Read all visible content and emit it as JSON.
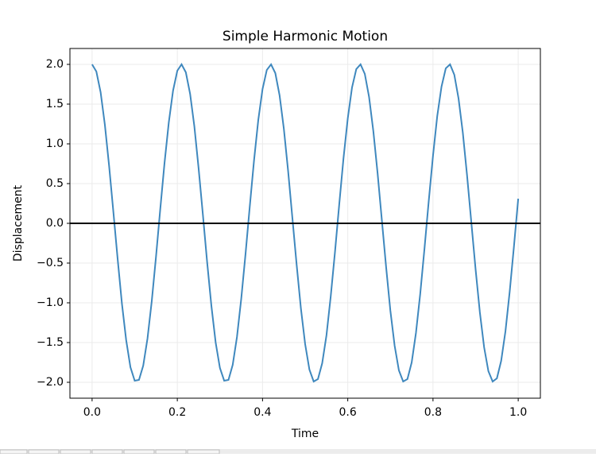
{
  "chart_data": {
    "type": "line",
    "title": "Simple Harmonic Motion",
    "x_label": "Time",
    "y_label": "Displacement",
    "x": [
      0,
      0.01,
      0.02,
      0.03,
      0.04,
      0.05,
      0.06,
      0.07,
      0.08,
      0.09,
      0.1,
      0.11,
      0.12,
      0.13,
      0.14,
      0.15,
      0.16,
      0.17,
      0.18,
      0.19,
      0.2,
      0.21,
      0.22,
      0.23,
      0.24,
      0.25,
      0.26,
      0.27,
      0.28,
      0.29,
      0.3,
      0.31,
      0.32,
      0.33,
      0.34,
      0.35,
      0.36,
      0.37,
      0.38,
      0.39,
      0.4,
      0.41,
      0.42,
      0.43,
      0.44,
      0.45,
      0.46,
      0.47,
      0.48,
      0.49,
      0.5,
      0.51,
      0.52,
      0.53,
      0.54,
      0.55,
      0.56,
      0.57,
      0.58,
      0.59,
      0.6,
      0.61,
      0.62,
      0.63,
      0.64,
      0.65,
      0.66,
      0.67,
      0.68,
      0.69,
      0.7,
      0.71,
      0.72,
      0.73,
      0.74,
      0.75,
      0.76,
      0.77,
      0.78,
      0.79,
      0.8,
      0.81,
      0.82,
      0.83,
      0.84,
      0.85,
      0.86,
      0.87,
      0.88,
      0.89,
      0.9,
      0.91,
      0.92,
      0.93,
      0.94,
      0.95,
      0.96,
      0.97,
      0.98,
      0.99,
      1.0
    ],
    "series": [
      {
        "color": "#3f88be",
        "values": [
          2.0,
          1.91,
          1.65,
          1.24,
          0.72,
          0.14,
          -0.45,
          -1.01,
          -1.47,
          -1.81,
          -1.98,
          -1.97,
          -1.79,
          -1.45,
          -0.98,
          -0.42,
          0.18,
          0.76,
          1.27,
          1.67,
          1.92,
          2.0,
          1.9,
          1.63,
          1.22,
          0.69,
          0.11,
          -0.49,
          -1.04,
          -1.5,
          -1.82,
          -1.98,
          -1.97,
          -1.78,
          -1.43,
          -0.95,
          -0.39,
          0.21,
          0.79,
          1.3,
          1.69,
          1.93,
          2.0,
          1.89,
          1.61,
          1.19,
          0.66,
          0.07,
          -0.52,
          -1.07,
          -1.52,
          -1.84,
          -1.99,
          -1.96,
          -1.76,
          -1.41,
          -0.92,
          -0.36,
          0.24,
          0.82,
          1.32,
          1.71,
          1.94,
          2.0,
          1.88,
          1.59,
          1.16,
          0.63,
          0.04,
          -0.55,
          -1.1,
          -1.54,
          -1.85,
          -1.99,
          -1.96,
          -1.75,
          -1.38,
          -0.89,
          -0.32,
          0.28,
          0.85,
          1.35,
          1.72,
          1.95,
          2.0,
          1.87,
          1.57,
          1.14,
          0.6,
          0.01,
          -0.58,
          -1.12,
          -1.56,
          -1.86,
          -1.99,
          -1.95,
          -1.73,
          -1.36,
          -0.86,
          -0.29,
          0.31
        ]
      }
    ],
    "hline": 0,
    "hline_color": "#000000",
    "xlim": [
      -0.052,
      1.052
    ],
    "ylim": [
      -2.2,
      2.2
    ],
    "xticks": [
      {
        "value": 0,
        "label": "0.0"
      },
      0.2,
      0.4,
      0.6,
      0.8,
      {
        "value": 1,
        "label": "1.0"
      }
    ],
    "yticks": [
      {
        "value": -2,
        "label": "−2.0"
      },
      {
        "value": -1.5,
        "label": "−1.5"
      },
      {
        "value": -1,
        "label": "−1.0"
      },
      {
        "value": -0.5,
        "label": "−0.5"
      },
      {
        "value": 0,
        "label": "0.0"
      },
      0.5,
      {
        "value": 1,
        "label": "1.0"
      },
      1.5,
      {
        "value": 2,
        "label": "2.0"
      }
    ],
    "grid": true
  }
}
